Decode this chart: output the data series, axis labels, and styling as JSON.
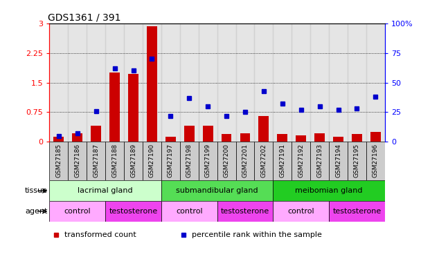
{
  "title": "GDS1361 / 391",
  "samples": [
    "GSM27185",
    "GSM27186",
    "GSM27187",
    "GSM27188",
    "GSM27189",
    "GSM27190",
    "GSM27197",
    "GSM27198",
    "GSM27199",
    "GSM27200",
    "GSM27201",
    "GSM27202",
    "GSM27191",
    "GSM27192",
    "GSM27193",
    "GSM27194",
    "GSM27195",
    "GSM27196"
  ],
  "bar_values": [
    0.13,
    0.22,
    0.4,
    1.75,
    1.72,
    2.92,
    0.13,
    0.4,
    0.4,
    0.2,
    0.22,
    0.65,
    0.2,
    0.17,
    0.22,
    0.13,
    0.2,
    0.25
  ],
  "dot_values": [
    5,
    7,
    26,
    62,
    60,
    70,
    22,
    37,
    30,
    22,
    25,
    43,
    32,
    27,
    30,
    27,
    28,
    38
  ],
  "bar_color": "#cc0000",
  "dot_color": "#0000cc",
  "ylim_left": [
    0,
    3
  ],
  "ylim_right": [
    0,
    100
  ],
  "yticks_left": [
    0,
    0.75,
    1.5,
    2.25,
    3
  ],
  "yticks_right": [
    0,
    25,
    50,
    75,
    100
  ],
  "ytick_labels_left": [
    "0",
    "0.75",
    "1.5",
    "2.25",
    "3"
  ],
  "ytick_labels_right": [
    "0",
    "25",
    "50",
    "75",
    "100%"
  ],
  "tissue_groups": [
    {
      "label": "lacrimal gland",
      "start": 0,
      "end": 6
    },
    {
      "label": "submandibular gland",
      "start": 6,
      "end": 12
    },
    {
      "label": "meibomian gland",
      "start": 12,
      "end": 18
    }
  ],
  "tissue_colors": [
    "#ccffcc",
    "#55dd55",
    "#22cc22"
  ],
  "agent_groups": [
    {
      "label": "control",
      "start": 0,
      "end": 3
    },
    {
      "label": "testosterone",
      "start": 3,
      "end": 6
    },
    {
      "label": "control",
      "start": 6,
      "end": 9
    },
    {
      "label": "testosterone",
      "start": 9,
      "end": 12
    },
    {
      "label": "control",
      "start": 12,
      "end": 15
    },
    {
      "label": "testosterone",
      "start": 15,
      "end": 18
    }
  ],
  "agent_color_control": "#ffaaff",
  "agent_color_testosterone": "#ee44ee",
  "legend_items": [
    {
      "label": "transformed count",
      "color": "#cc0000"
    },
    {
      "label": "percentile rank within the sample",
      "color": "#0000cc"
    }
  ],
  "tissue_label": "tissue",
  "agent_label": "agent",
  "sample_bg_color": "#cccccc"
}
